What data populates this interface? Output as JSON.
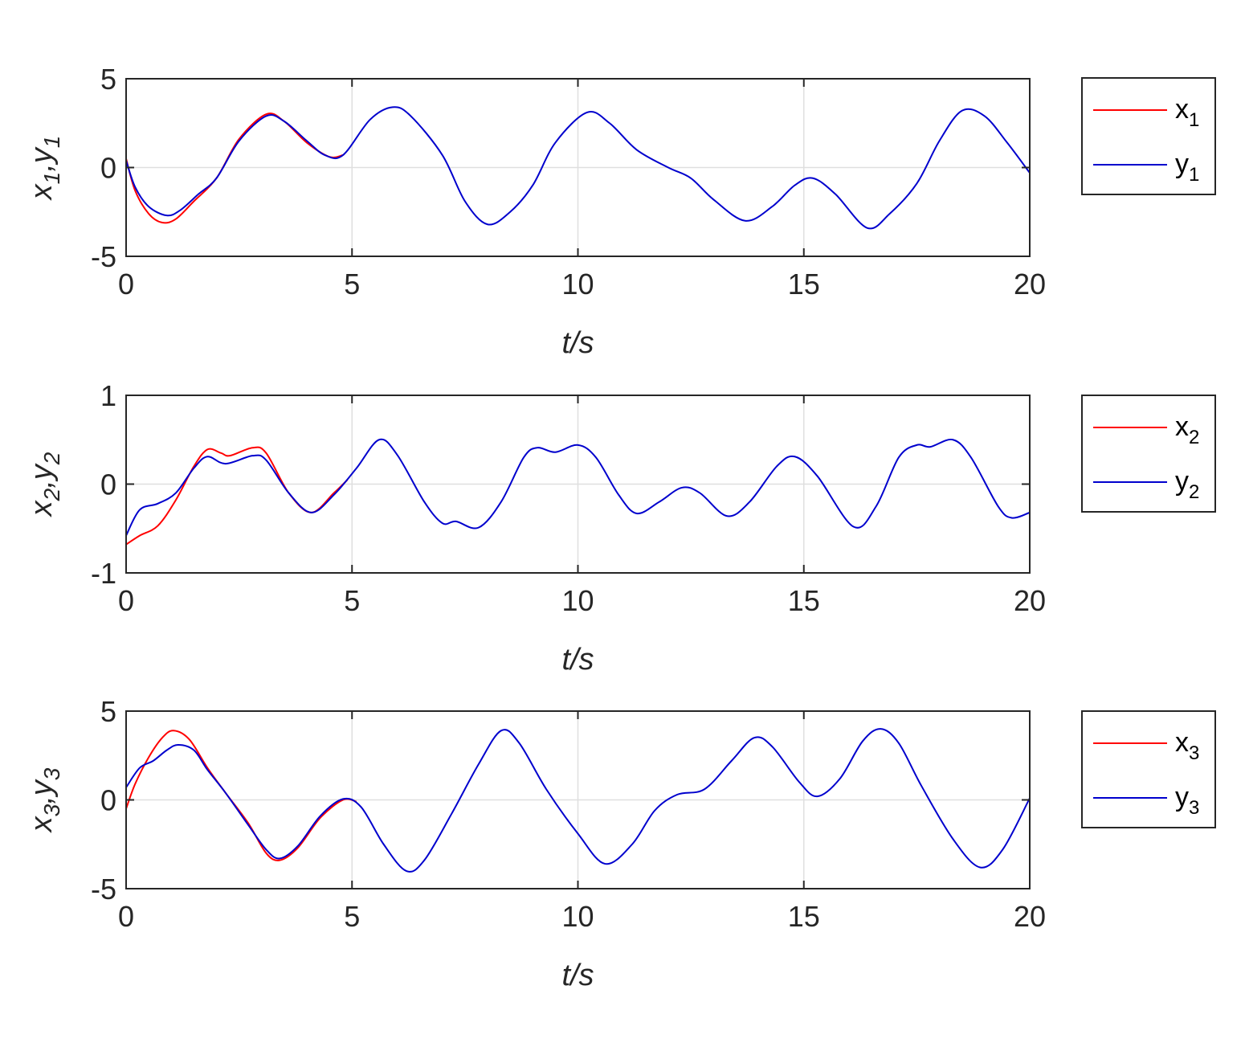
{
  "colors": {
    "x_series": "#ff0000",
    "y_series": "#0000cd",
    "axes": "#262626",
    "grid": "#dfdfdf"
  },
  "chart_data": [
    {
      "type": "line",
      "xlabel": "t/s",
      "ylabel": {
        "v1": "x",
        "s1": "1",
        "sep": ",",
        "v2": "y",
        "s2": "1"
      },
      "xlim": [
        0,
        20
      ],
      "ylim": [
        -5,
        5
      ],
      "xticks": [
        0,
        5,
        10,
        15,
        20
      ],
      "yticks": [
        -5,
        0,
        5
      ],
      "xtick_labels": [
        "0",
        "5",
        "10",
        "15",
        "20"
      ],
      "ytick_labels": [
        "-5",
        "0",
        "5"
      ],
      "grid": true,
      "legend_position": "outside-right",
      "series": [
        {
          "name": "x",
          "sub": "1",
          "color": "#ff0000",
          "points": [
            [
              0,
              0.5
            ],
            [
              0.2,
              -1.3
            ],
            [
              0.5,
              -2.6
            ],
            [
              0.8,
              -3.1
            ],
            [
              1.1,
              -2.9
            ],
            [
              1.5,
              -1.9
            ],
            [
              2,
              -0.6
            ],
            [
              2.5,
              1.6
            ],
            [
              3.1,
              3.0
            ],
            [
              3.5,
              2.6
            ],
            [
              4,
              1.4
            ],
            [
              4.5,
              0.6
            ],
            [
              4.8,
              0.7
            ]
          ]
        },
        {
          "name": "y",
          "sub": "1",
          "color": "#0000cd",
          "points": [
            [
              0,
              0.4
            ],
            [
              0.2,
              -1.1
            ],
            [
              0.5,
              -2.2
            ],
            [
              0.9,
              -2.7
            ],
            [
              1.2,
              -2.4
            ],
            [
              1.6,
              -1.5
            ],
            [
              2,
              -0.6
            ],
            [
              2.5,
              1.5
            ],
            [
              3.1,
              2.9
            ],
            [
              3.5,
              2.6
            ],
            [
              4,
              1.5
            ],
            [
              4.4,
              0.7
            ],
            [
              4.8,
              0.7
            ],
            [
              5.4,
              2.7
            ],
            [
              5.9,
              3.4
            ],
            [
              6.3,
              2.9
            ],
            [
              7,
              0.7
            ],
            [
              7.5,
              -1.9
            ],
            [
              8,
              -3.2
            ],
            [
              8.5,
              -2.5
            ],
            [
              9,
              -1.0
            ],
            [
              9.5,
              1.4
            ],
            [
              10.2,
              3.1
            ],
            [
              10.7,
              2.5
            ],
            [
              11.3,
              1.0
            ],
            [
              12,
              0.0
            ],
            [
              12.5,
              -0.6
            ],
            [
              13,
              -1.8
            ],
            [
              13.7,
              -3.0
            ],
            [
              14.3,
              -2.2
            ],
            [
              14.8,
              -1.0
            ],
            [
              15.2,
              -0.6
            ],
            [
              15.7,
              -1.5
            ],
            [
              16.4,
              -3.4
            ],
            [
              16.9,
              -2.6
            ],
            [
              17.5,
              -0.9
            ],
            [
              18,
              1.5
            ],
            [
              18.5,
              3.2
            ],
            [
              19,
              2.9
            ],
            [
              19.5,
              1.4
            ],
            [
              20,
              -0.3
            ]
          ]
        }
      ]
    },
    {
      "type": "line",
      "xlabel": "t/s",
      "ylabel": {
        "v1": "x",
        "s1": "2",
        "sep": ",",
        "v2": "y",
        "s2": "2"
      },
      "xlim": [
        0,
        20
      ],
      "ylim": [
        -1,
        1
      ],
      "xticks": [
        0,
        5,
        10,
        15,
        20
      ],
      "yticks": [
        -1,
        0,
        1
      ],
      "xtick_labels": [
        "0",
        "5",
        "10",
        "15",
        "20"
      ],
      "ytick_labels": [
        "-1",
        "0",
        "1"
      ],
      "grid": true,
      "legend_position": "outside-right",
      "series": [
        {
          "name": "x",
          "sub": "2",
          "color": "#ff0000",
          "points": [
            [
              0,
              -0.68
            ],
            [
              0.3,
              -0.58
            ],
            [
              0.7,
              -0.47
            ],
            [
              1.1,
              -0.18
            ],
            [
              1.5,
              0.2
            ],
            [
              1.8,
              0.39
            ],
            [
              2.1,
              0.35
            ],
            [
              2.3,
              0.32
            ],
            [
              2.8,
              0.41
            ],
            [
              3.1,
              0.35
            ],
            [
              3.6,
              -0.1
            ],
            [
              4.1,
              -0.32
            ],
            [
              4.6,
              -0.1
            ],
            [
              4.9,
              0.05
            ]
          ]
        },
        {
          "name": "y",
          "sub": "2",
          "color": "#0000cd",
          "points": [
            [
              0,
              -0.58
            ],
            [
              0.3,
              -0.29
            ],
            [
              0.7,
              -0.22
            ],
            [
              1.1,
              -0.1
            ],
            [
              1.5,
              0.18
            ],
            [
              1.8,
              0.31
            ],
            [
              2.2,
              0.23
            ],
            [
              2.8,
              0.32
            ],
            [
              3.1,
              0.27
            ],
            [
              3.6,
              -0.1
            ],
            [
              4.1,
              -0.32
            ],
            [
              4.6,
              -0.12
            ],
            [
              5.1,
              0.18
            ],
            [
              5.6,
              0.5
            ],
            [
              6,
              0.33
            ],
            [
              6.6,
              -0.2
            ],
            [
              7,
              -0.44
            ],
            [
              7.3,
              -0.42
            ],
            [
              7.8,
              -0.49
            ],
            [
              8.3,
              -0.2
            ],
            [
              8.8,
              0.3
            ],
            [
              9.1,
              0.41
            ],
            [
              9.5,
              0.36
            ],
            [
              10,
              0.44
            ],
            [
              10.4,
              0.3
            ],
            [
              10.9,
              -0.12
            ],
            [
              11.3,
              -0.33
            ],
            [
              11.8,
              -0.2
            ],
            [
              12.3,
              -0.04
            ],
            [
              12.7,
              -0.1
            ],
            [
              13.3,
              -0.36
            ],
            [
              13.8,
              -0.2
            ],
            [
              14.4,
              0.2
            ],
            [
              14.8,
              0.31
            ],
            [
              15.3,
              0.09
            ],
            [
              16.1,
              -0.48
            ],
            [
              16.6,
              -0.25
            ],
            [
              17.1,
              0.3
            ],
            [
              17.5,
              0.44
            ],
            [
              17.8,
              0.42
            ],
            [
              18.3,
              0.5
            ],
            [
              18.7,
              0.3
            ],
            [
              19.3,
              -0.25
            ],
            [
              19.6,
              -0.38
            ],
            [
              20,
              -0.32
            ]
          ]
        }
      ]
    },
    {
      "type": "line",
      "xlabel": "t/s",
      "ylabel": {
        "v1": "x",
        "s1": "3",
        "sep": ",",
        "v2": "y",
        "s2": "3"
      },
      "xlim": [
        0,
        20
      ],
      "ylim": [
        -5,
        5
      ],
      "xticks": [
        0,
        5,
        10,
        15,
        20
      ],
      "yticks": [
        -5,
        0,
        5
      ],
      "xtick_labels": [
        "0",
        "5",
        "10",
        "15",
        "20"
      ],
      "ytick_labels": [
        "-5",
        "0",
        "5"
      ],
      "grid": true,
      "legend_position": "outside-right",
      "series": [
        {
          "name": "x",
          "sub": "3",
          "color": "#ff0000",
          "points": [
            [
              0,
              -0.5
            ],
            [
              0.2,
              0.9
            ],
            [
              0.5,
              2.4
            ],
            [
              0.8,
              3.5
            ],
            [
              1.05,
              3.9
            ],
            [
              1.4,
              3.4
            ],
            [
              1.8,
              1.8
            ],
            [
              2.2,
              0.4
            ],
            [
              2.7,
              -1.3
            ],
            [
              3.1,
              -3.0
            ],
            [
              3.4,
              -3.4
            ],
            [
              3.8,
              -2.7
            ],
            [
              4.3,
              -1.0
            ],
            [
              4.8,
              0.0
            ],
            [
              5.1,
              -0.1
            ]
          ]
        },
        {
          "name": "y",
          "sub": "3",
          "color": "#0000cd",
          "points": [
            [
              0,
              0.7
            ],
            [
              0.3,
              1.8
            ],
            [
              0.6,
              2.2
            ],
            [
              0.9,
              2.8
            ],
            [
              1.15,
              3.1
            ],
            [
              1.5,
              2.8
            ],
            [
              1.8,
              1.7
            ],
            [
              2.2,
              0.4
            ],
            [
              2.7,
              -1.4
            ],
            [
              3.1,
              -2.8
            ],
            [
              3.4,
              -3.3
            ],
            [
              3.8,
              -2.6
            ],
            [
              4.3,
              -0.9
            ],
            [
              4.8,
              0.05
            ],
            [
              5.2,
              -0.4
            ],
            [
              5.7,
              -2.5
            ],
            [
              6.2,
              -4.0
            ],
            [
              6.6,
              -3.4
            ],
            [
              7.2,
              -0.8
            ],
            [
              7.8,
              2.0
            ],
            [
              8.3,
              3.9
            ],
            [
              8.7,
              3.2
            ],
            [
              9.3,
              0.6
            ],
            [
              10,
              -1.9
            ],
            [
              10.6,
              -3.6
            ],
            [
              11.2,
              -2.5
            ],
            [
              11.7,
              -0.6
            ],
            [
              12.2,
              0.3
            ],
            [
              12.8,
              0.6
            ],
            [
              13.4,
              2.2
            ],
            [
              13.9,
              3.5
            ],
            [
              14.3,
              3.0
            ],
            [
              14.9,
              1.0
            ],
            [
              15.3,
              0.2
            ],
            [
              15.8,
              1.2
            ],
            [
              16.3,
              3.3
            ],
            [
              16.7,
              4.0
            ],
            [
              17.1,
              3.2
            ],
            [
              17.6,
              0.8
            ],
            [
              18.3,
              -2.2
            ],
            [
              18.9,
              -3.8
            ],
            [
              19.4,
              -2.8
            ],
            [
              20,
              0.1
            ]
          ]
        }
      ]
    }
  ]
}
